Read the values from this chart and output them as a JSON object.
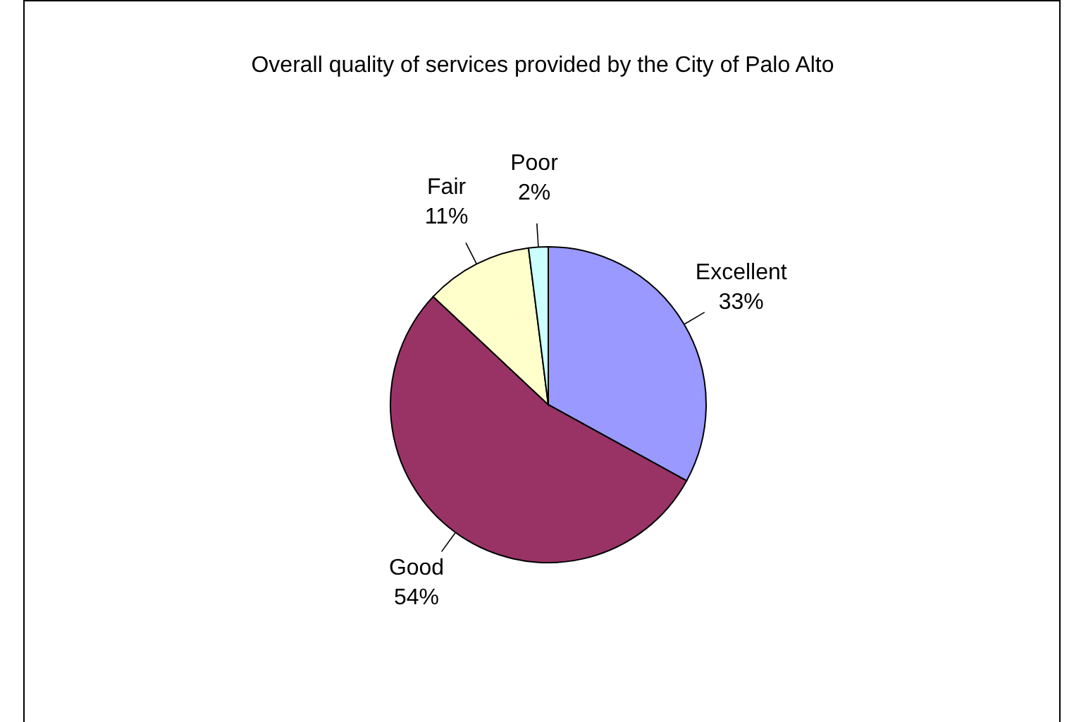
{
  "chart_data": {
    "type": "pie",
    "title": "Overall quality of services provided by the City of Palo Alto",
    "categories": [
      "Excellent",
      "Good",
      "Fair",
      "Poor"
    ],
    "values": [
      33,
      54,
      11,
      2
    ],
    "colors": [
      "#9999ff",
      "#993366",
      "#ffffcc",
      "#ccffff"
    ],
    "value_labels": [
      "33%",
      "54%",
      "11%",
      "2%"
    ]
  }
}
